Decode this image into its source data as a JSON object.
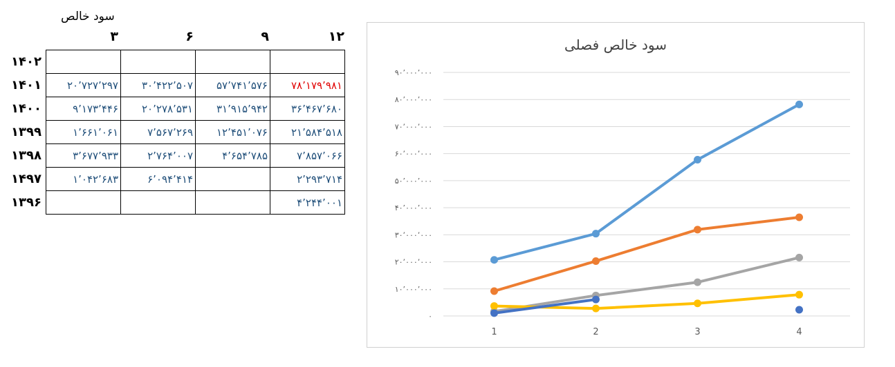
{
  "sheet": {
    "title": "سود خالص",
    "columns": [
      "۱۲",
      "۹",
      "۶",
      "۳"
    ],
    "rows": [
      {
        "year": "۱۴۰۲",
        "cells": [
          "",
          "",
          "",
          ""
        ]
      },
      {
        "year": "۱۴۰۱",
        "cells": [
          "۷۸٬۱۷۹٬۹۸۱",
          "۵۷٬۷۴۱٬۵۷۶",
          "۳۰٬۴۲۲٬۵۰۷",
          "۲۰٬۷۲۷٬۲۹۷"
        ]
      },
      {
        "year": "۱۴۰۰",
        "cells": [
          "۳۶٬۴۶۷٬۶۸۰",
          "۳۱٬۹۱۵٬۹۴۲",
          "۲۰٬۲۷۸٬۵۳۱",
          "۹٬۱۷۳٬۴۴۶"
        ]
      },
      {
        "year": "۱۳۹۹",
        "cells": [
          "۲۱٬۵۸۴٬۵۱۸",
          "۱۲٬۴۵۱٬۰۷۶",
          "۷٬۵۶۷٬۲۶۹",
          "۱٬۶۶۱٬۰۶۱"
        ]
      },
      {
        "year": "۱۳۹۸",
        "cells": [
          "۷٬۸۵۷٬۰۶۶",
          "۴٬۶۵۴٬۷۸۵",
          "۲٬۷۶۴٬۰۰۷",
          "۳٬۶۷۷٬۹۳۳"
        ]
      },
      {
        "year": "۱۴۹۷",
        "cells": [
          "۲٬۲۹۳٬۷۱۴",
          "",
          "۶٬۰۹۴٬۴۱۴",
          "۱٬۰۴۲٬۶۸۳"
        ]
      },
      {
        "year": "۱۳۹۶",
        "cells": [
          "۴٬۲۴۴٬۰۰۱",
          "",
          "",
          ""
        ]
      }
    ],
    "highlight_color": "#e00000",
    "cell_color": "#1f4e79"
  },
  "chart_data": {
    "type": "line",
    "title": "سود خالص فصلی",
    "x": [
      "1",
      "2",
      "3",
      "4"
    ],
    "ylim": [
      0,
      90000000
    ],
    "y_ticks": [
      "۰",
      "۱۰٬۰۰۰٬۰۰۰",
      "۲۰٬۰۰۰٬۰۰۰",
      "۳۰٬۰۰۰٬۰۰۰",
      "۴۰٬۰۰۰٬۰۰۰",
      "۵۰٬۰۰۰٬۰۰۰",
      "۶۰٬۰۰۰٬۰۰۰",
      "۷۰٬۰۰۰٬۰۰۰",
      "۸۰٬۰۰۰٬۰۰۰",
      "۹۰٬۰۰۰٬۰۰۰"
    ],
    "grid": true,
    "series": [
      {
        "color": "#5b9bd5",
        "values": [
          20727297,
          30422507,
          57741576,
          78179981
        ]
      },
      {
        "color": "#ed7d31",
        "values": [
          9173446,
          20278531,
          31915942,
          36467680
        ]
      },
      {
        "color": "#a5a5a5",
        "values": [
          1661061,
          7567269,
          12451076,
          21584518
        ]
      },
      {
        "color": "#ffc000",
        "values": [
          3677933,
          2764007,
          4654785,
          7857066
        ]
      },
      {
        "color": "#4472c4",
        "values": [
          1042683,
          6094414,
          null,
          2293714
        ]
      }
    ]
  }
}
